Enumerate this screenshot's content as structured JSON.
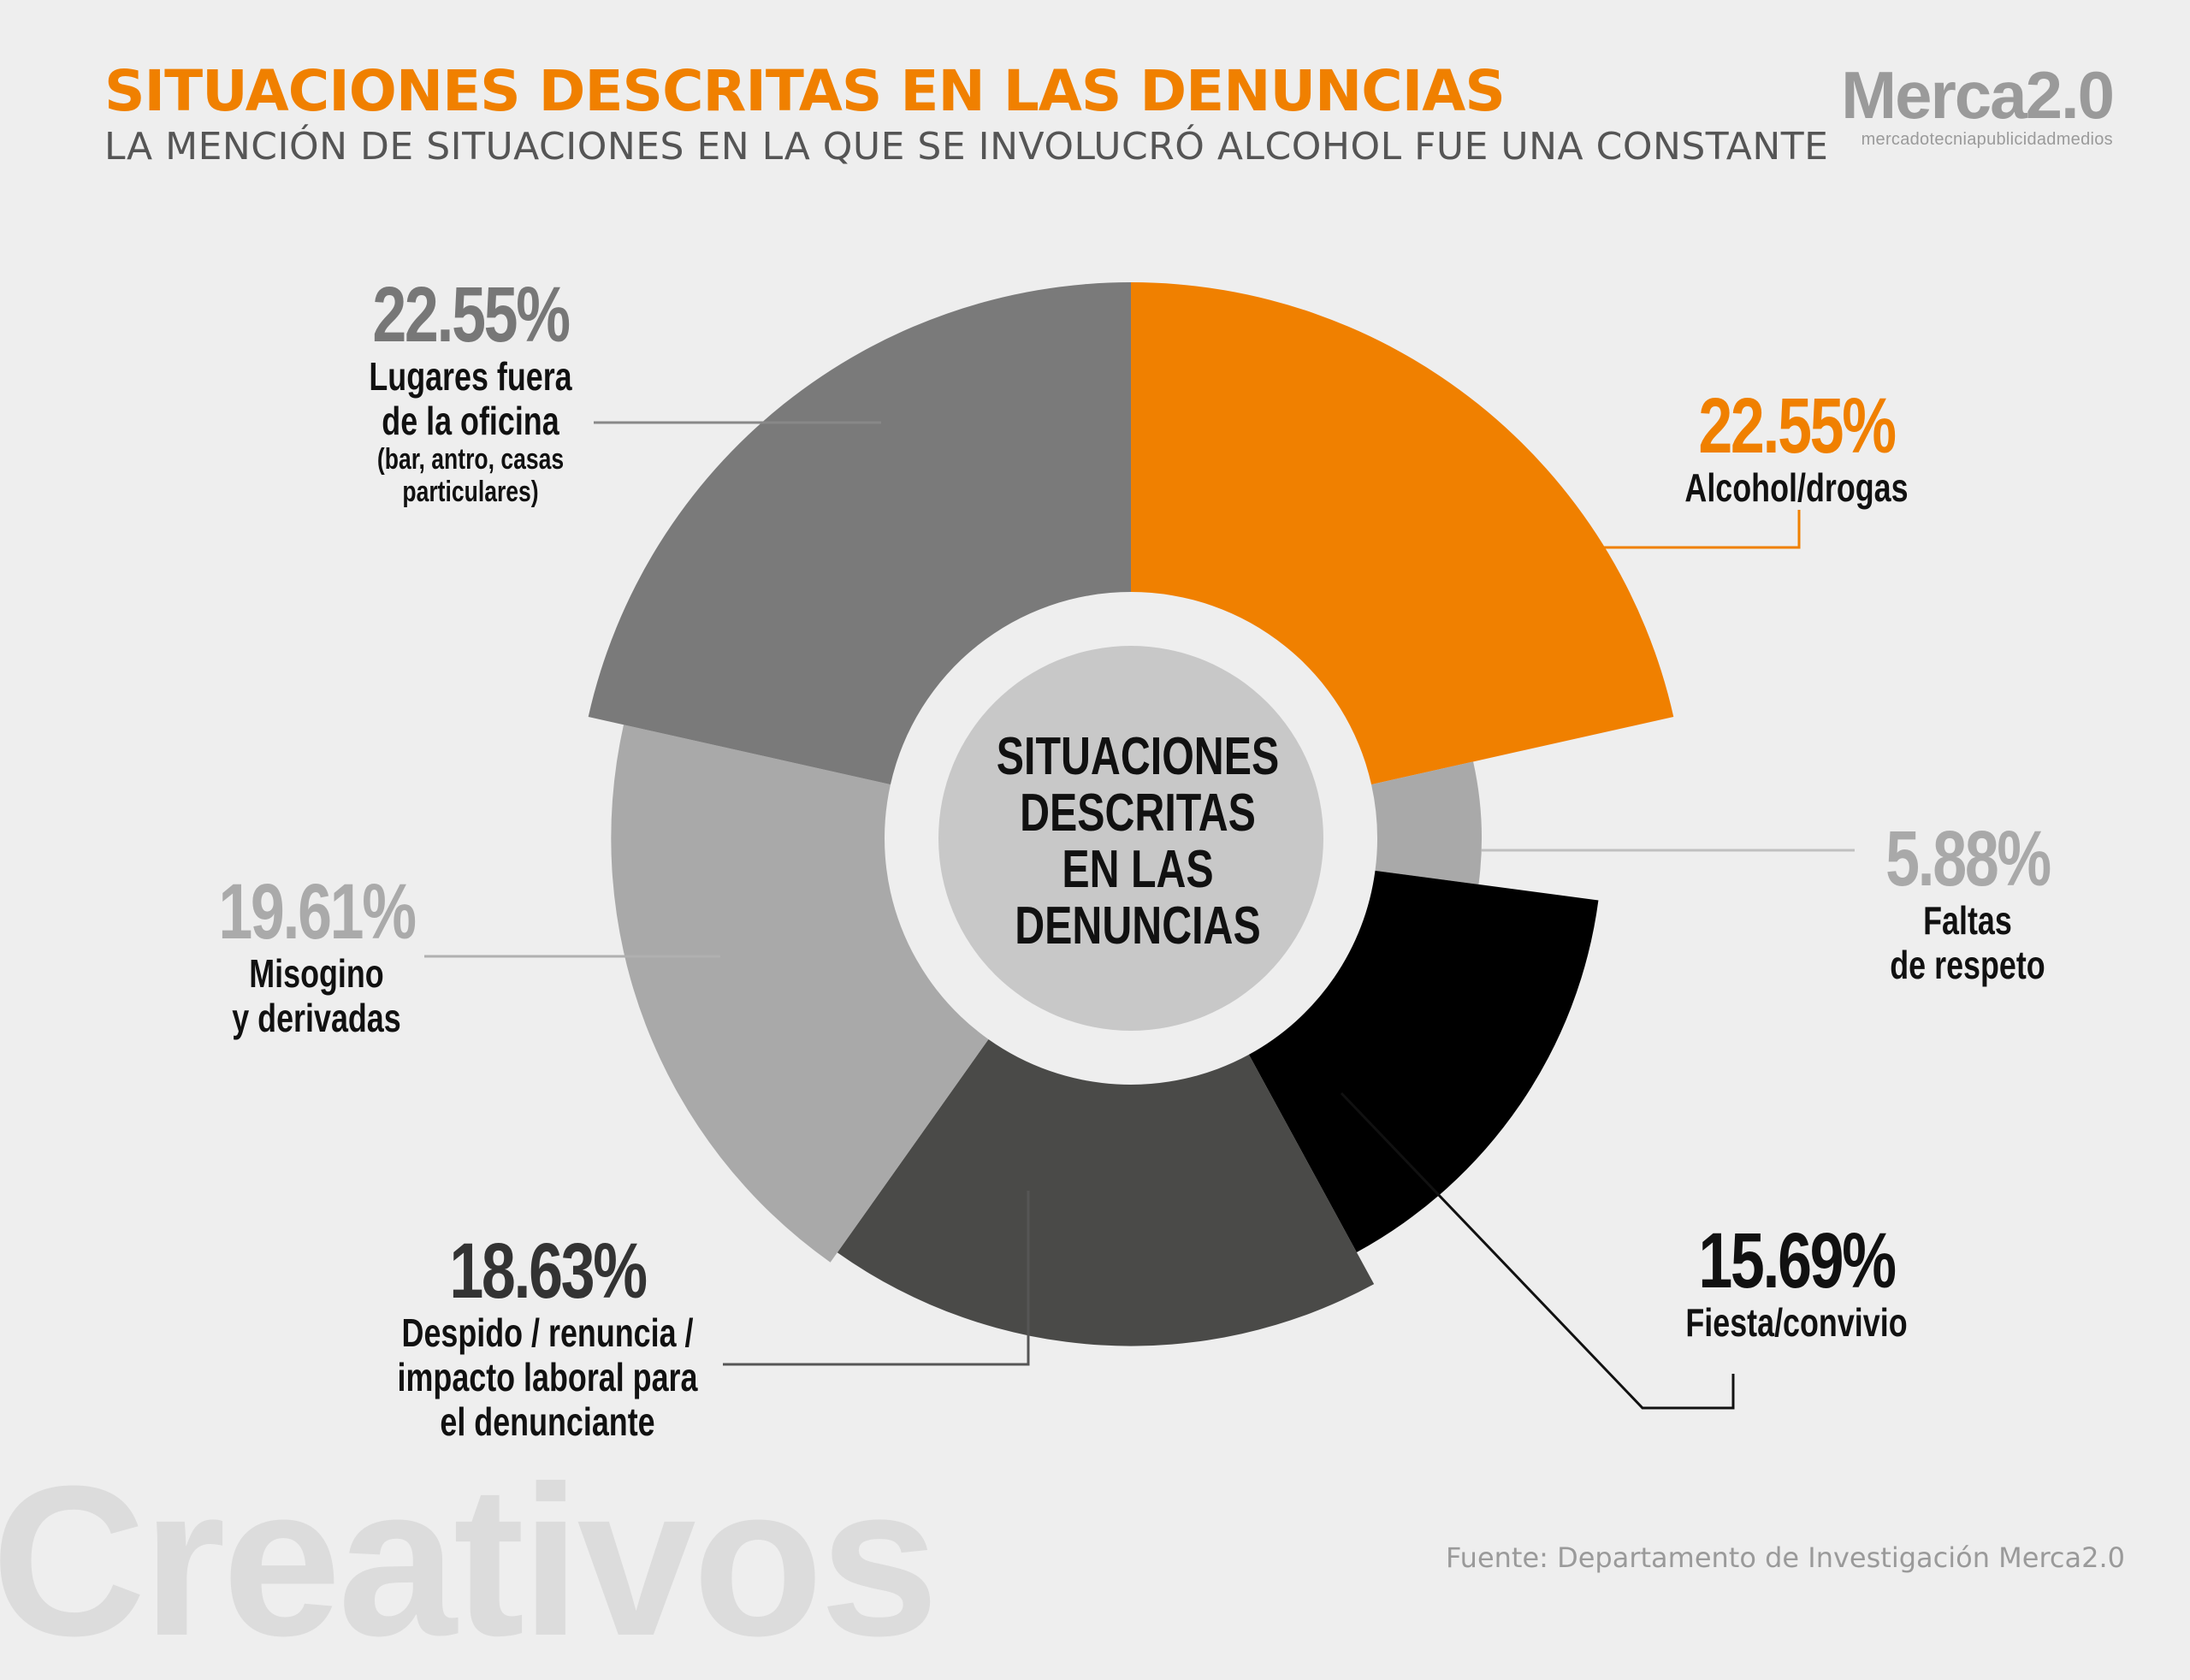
{
  "header": {
    "title": "SITUACIONES DESCRITAS EN LAS DENUNCIAS",
    "subtitle": "LA MENCIÓN DE SITUACIONES EN LA QUE SE INVOLUCRÓ ALCOHOL FUE UNA CONSTANTE"
  },
  "logo": {
    "name": "Merca2.0",
    "tagline": "mercadotecniapublicidadmedios"
  },
  "footer": {
    "source": "Fuente:  Departamento de Investigación Merca2.0",
    "watermark": "Creativos"
  },
  "chart_data": {
    "type": "pie",
    "style": "radial-donut",
    "center_label": "SITUACIONES\nDESCRITAS\nEN LAS\nDENUNCIAS",
    "slices": [
      {
        "value": 22.55,
        "label_value": "22.55%",
        "category": "Alcohol/drogas",
        "note": "",
        "color": "#f08000",
        "value_color": "#f08000"
      },
      {
        "value": 5.88,
        "label_value": "5.88%",
        "category": "Faltas\nde respeto",
        "note": "",
        "color": "#a9a9a9",
        "value_color": "#a9a9a9"
      },
      {
        "value": 15.69,
        "label_value": "15.69%",
        "category": "Fiesta/convivio",
        "note": "",
        "color": "#000000",
        "value_color": "#111111"
      },
      {
        "value": 18.63,
        "label_value": "18.63%",
        "category": "Despido / renuncia /\nimpacto laboral para\nel denunciante",
        "note": "",
        "color": "#4a4a48",
        "value_color": "#333333"
      },
      {
        "value": 19.61,
        "label_value": "19.61%",
        "category": "Misogino\ny derivadas",
        "note": "",
        "color": "#a9a9a9",
        "value_color": "#aaaaaa"
      },
      {
        "value": 22.55,
        "label_value": "22.55%",
        "category": "Lugares fuera\nde la oficina",
        "note": "(bar, antro, casas\nparticulares)",
        "color": "#7a7a7a",
        "value_color": "#777777"
      }
    ]
  }
}
